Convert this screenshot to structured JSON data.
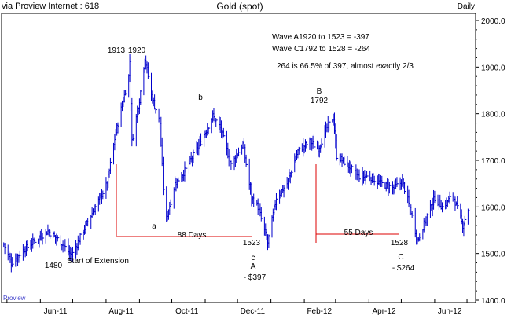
{
  "header": {
    "source": "via Proview Internet : 618",
    "title": "Gold (spot)",
    "interval": "Daily"
  },
  "watermark": "Proview",
  "colors": {
    "bars": "#0000cc",
    "annotation_lines": "#dd0000",
    "text": "#000000",
    "frame": "#000000",
    "watermark": "#4444cc"
  },
  "notes": {
    "wave_a": "Wave A1920 to 1523   = -397",
    "wave_c": "Wave C1792 to 1528  = -264",
    "ratio": "264 is 66.5% of 397, almost exactly 2/3"
  },
  "annotations": [
    {
      "id": "peak-1913",
      "text": "1913"
    },
    {
      "id": "peak-1920",
      "text": "1920"
    },
    {
      "id": "low-1480",
      "text": "1480"
    },
    {
      "id": "start-of-extension",
      "text": "Start of Extension"
    },
    {
      "id": "label-a-lower",
      "text": "a"
    },
    {
      "id": "label-b-lower",
      "text": "b"
    },
    {
      "id": "label-c-lower",
      "text": "c"
    },
    {
      "id": "low-1523",
      "text": "1523"
    },
    {
      "id": "label-A",
      "text": "A"
    },
    {
      "id": "loss-397",
      "text": "- $397"
    },
    {
      "id": "label-B",
      "text": "B"
    },
    {
      "id": "peak-1792",
      "text": "1792"
    },
    {
      "id": "low-1528",
      "text": "1528"
    },
    {
      "id": "label-C",
      "text": "C"
    },
    {
      "id": "loss-264",
      "text": "- $264"
    },
    {
      "id": "days-88",
      "text": "88 Days"
    },
    {
      "id": "days-55",
      "text": "55 Days"
    }
  ],
  "chart_data": {
    "type": "ohlc",
    "title": "Gold (spot)",
    "y_axis": {
      "position": "right",
      "ylim": [
        1400,
        2000
      ],
      "ticks": [
        1400,
        1500,
        1600,
        1700,
        1800,
        1900,
        2000
      ],
      "tick_labels": [
        "1400.0",
        "1500.0",
        "1600.0",
        "1700.0",
        "1800.0",
        "1900.0",
        "2000.0"
      ]
    },
    "x_axis": {
      "tick_labels": [
        "Jun-11",
        "Aug-11",
        "Oct-11",
        "Dec-11",
        "Feb-12",
        "Apr-12",
        "Jun-12"
      ]
    },
    "grid": false,
    "price_path": [
      {
        "date": "2011-04-28",
        "close": 1520
      },
      {
        "date": "2011-05-05",
        "close": 1480
      },
      {
        "date": "2011-05-15",
        "close": 1505
      },
      {
        "date": "2011-05-28",
        "close": 1530
      },
      {
        "date": "2011-06-08",
        "close": 1548
      },
      {
        "date": "2011-06-20",
        "close": 1525
      },
      {
        "date": "2011-06-30",
        "close": 1495
      },
      {
        "date": "2011-07-10",
        "close": 1545
      },
      {
        "date": "2011-07-22",
        "close": 1600
      },
      {
        "date": "2011-08-02",
        "close": 1650
      },
      {
        "date": "2011-08-10",
        "close": 1760
      },
      {
        "date": "2011-08-22",
        "close": 1880
      },
      {
        "date": "2011-08-23",
        "close": 1913
      },
      {
        "date": "2011-08-25",
        "close": 1740
      },
      {
        "date": "2011-09-01",
        "close": 1830
      },
      {
        "date": "2011-09-06",
        "close": 1920
      },
      {
        "date": "2011-09-12",
        "close": 1840
      },
      {
        "date": "2011-09-20",
        "close": 1780
      },
      {
        "date": "2011-09-23",
        "close": 1640
      },
      {
        "date": "2011-09-26",
        "close": 1575
      },
      {
        "date": "2011-10-04",
        "close": 1650
      },
      {
        "date": "2011-10-14",
        "close": 1680
      },
      {
        "date": "2011-10-28",
        "close": 1740
      },
      {
        "date": "2011-11-08",
        "close": 1795
      },
      {
        "date": "2011-11-15",
        "close": 1770
      },
      {
        "date": "2011-11-25",
        "close": 1690
      },
      {
        "date": "2011-12-06",
        "close": 1735
      },
      {
        "date": "2011-12-14",
        "close": 1620
      },
      {
        "date": "2011-12-20",
        "close": 1600
      },
      {
        "date": "2011-12-29",
        "close": 1523
      },
      {
        "date": "2012-01-06",
        "close": 1620
      },
      {
        "date": "2012-01-16",
        "close": 1650
      },
      {
        "date": "2012-01-26",
        "close": 1720
      },
      {
        "date": "2012-02-06",
        "close": 1740
      },
      {
        "date": "2012-02-14",
        "close": 1725
      },
      {
        "date": "2012-02-22",
        "close": 1770
      },
      {
        "date": "2012-02-28",
        "close": 1792
      },
      {
        "date": "2012-03-02",
        "close": 1710
      },
      {
        "date": "2012-03-12",
        "close": 1690
      },
      {
        "date": "2012-03-22",
        "close": 1665
      },
      {
        "date": "2012-04-02",
        "close": 1665
      },
      {
        "date": "2012-04-12",
        "close": 1650
      },
      {
        "date": "2012-04-24",
        "close": 1640
      },
      {
        "date": "2012-05-02",
        "close": 1655
      },
      {
        "date": "2012-05-10",
        "close": 1590
      },
      {
        "date": "2012-05-16",
        "close": 1528
      },
      {
        "date": "2012-05-24",
        "close": 1575
      },
      {
        "date": "2012-06-01",
        "close": 1620
      },
      {
        "date": "2012-06-08",
        "close": 1600
      },
      {
        "date": "2012-06-18",
        "close": 1625
      },
      {
        "date": "2012-06-27",
        "close": 1560
      },
      {
        "date": "2012-07-02",
        "close": 1595
      }
    ]
  }
}
